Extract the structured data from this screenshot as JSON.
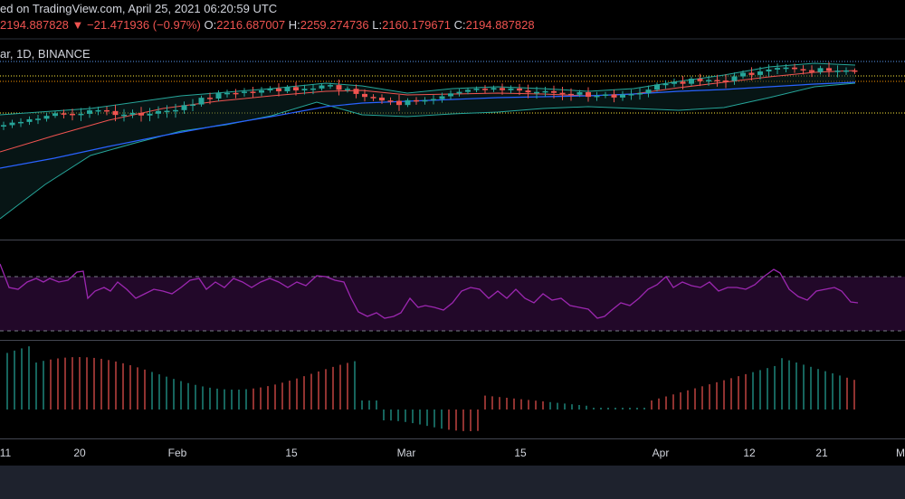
{
  "header": {
    "published": "ed on TradingView.com, April 25, 2021 06:20:59 UTC",
    "price": "2194.887828",
    "change_arrow": "▼",
    "change": "−21.471936 (−0.97%)",
    "o_label": "O:",
    "o_value": "2216.687007",
    "h_label": "H:",
    "h_value": "2259.274736",
    "l_label": "L:",
    "l_value": "2160.179671",
    "c_label": "C:",
    "c_value": "2194.887828"
  },
  "symbol_line": "ar, 1D, BINANCE",
  "x_axis_labels": [
    "11",
    "20",
    "Feb",
    "15",
    "Mar",
    "15",
    "Apr",
    "12",
    "21",
    "M"
  ],
  "colors": {
    "up": "#26a69a",
    "down": "#ef5350",
    "rsi": "#9c27b0",
    "ma_slow": "#2962ff",
    "ma_fast": "#ef5350",
    "band": "#26a69a",
    "hist_up": "#26a69a",
    "hist_down": "#ef5350"
  }
}
